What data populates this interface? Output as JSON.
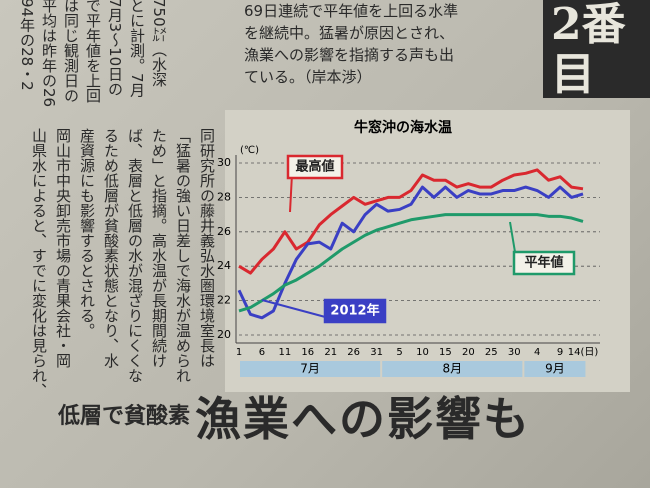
{
  "article": {
    "top_lines": [
      "69日連続で平年値を上回る水準",
      "を継続中。猛暑が原因とされ、",
      "漁業への影響を指摘する声も出",
      "ている。（岸本渉）"
    ],
    "badge": "2番目",
    "columns_left": [
      "750㍍（水深",
      "とに計測。7月",
      "7月3〜10日の",
      "で平年値を上回",
      "は同じ観測日の",
      "平均は昨年の26",
      "94年の28・2"
    ],
    "columns_right": [
      "同研究所の藤井義弘水圏環境室長は",
      "「猛暑の強い日差しで海水が温められ",
      "ため」と指摘。高水温が長期間続け",
      "ば、表層と低層の水が混ざりにくくな",
      "るため低層が貧酸素状態となり、水",
      "産資源にも影響するとされる。",
      "岡山市中央卸売市場の青果会社・岡",
      "山県水によると、すでに変化は見られ、"
    ],
    "headline_small": "低層で貧酸素",
    "headline_large": "漁業への影響も"
  },
  "chart_data": {
    "type": "line",
    "title": "牛窓沖の海水温",
    "y_unit": "(℃)",
    "categories": [
      "1",
      null,
      "6",
      null,
      "11",
      null,
      "16",
      null,
      "21",
      null,
      "26",
      null,
      "31",
      null,
      "5",
      null,
      "10",
      null,
      "15",
      null,
      "20",
      null,
      "25",
      null,
      "30",
      null,
      "4",
      null,
      "9",
      null,
      "14(日)"
    ],
    "months": [
      "7月",
      "8月",
      "9月"
    ],
    "ylim": [
      20,
      30
    ],
    "yticks": [
      20,
      22,
      24,
      26,
      28,
      30
    ],
    "grid": true,
    "series": [
      {
        "name": "最高値",
        "color": "#d9282f",
        "values": [
          24.0,
          23.6,
          24.4,
          25.0,
          26.0,
          25.0,
          25.4,
          26.4,
          27.0,
          27.5,
          28.0,
          27.6,
          27.8,
          28.0,
          28.0,
          28.4,
          29.3,
          29.0,
          29.0,
          28.6,
          28.8,
          28.6,
          28.6,
          29.0,
          29.3,
          29.4,
          29.6,
          29.0,
          29.2,
          28.6,
          28.5
        ]
      },
      {
        "name": "2012年",
        "color": "#3a3fc4",
        "values": [
          22.6,
          21.2,
          21.0,
          21.4,
          23.0,
          24.4,
          25.3,
          25.4,
          25.0,
          26.5,
          26.0,
          27.0,
          27.6,
          27.2,
          27.3,
          27.6,
          28.6,
          28.0,
          28.6,
          28.0,
          28.4,
          28.2,
          28.2,
          28.4,
          28.4,
          28.6,
          28.4,
          28.0,
          28.6,
          28.0,
          28.2
        ]
      },
      {
        "name": "平年値",
        "color": "#1f9a6a",
        "values": [
          21.4,
          21.6,
          22.0,
          22.4,
          22.9,
          23.2,
          23.6,
          24.0,
          24.5,
          25.0,
          25.4,
          25.8,
          26.1,
          26.3,
          26.5,
          26.7,
          26.8,
          26.9,
          27.0,
          27.0,
          27.0,
          27.0,
          27.0,
          27.0,
          27.0,
          27.0,
          27.0,
          26.9,
          26.9,
          26.8,
          26.6
        ]
      }
    ]
  }
}
